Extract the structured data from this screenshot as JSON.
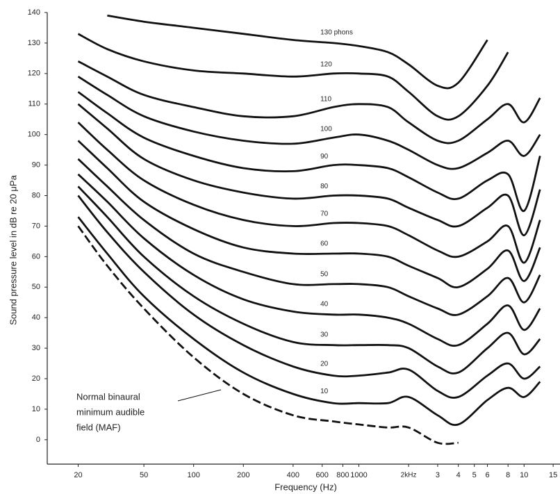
{
  "chart_data": {
    "type": "line",
    "xlabel": "Frequency (Hz)",
    "ylabel": "Sound pressure level in dB re 20 μPa",
    "xscale": "log",
    "xlim": [
      13,
      16500
    ],
    "ylim": [
      -8,
      140
    ],
    "xticks": [
      20,
      50,
      100,
      200,
      400,
      600,
      800,
      1000,
      {
        "value": 2000,
        "label": "2kHz"
      },
      {
        "value": 3000,
        "label": "3"
      },
      {
        "value": 4000,
        "label": "4"
      },
      {
        "value": 5000,
        "label": "5"
      },
      {
        "value": 6000,
        "label": "6"
      },
      {
        "value": 8000,
        "label": "8"
      },
      {
        "value": 10000,
        "label": "10"
      },
      {
        "value": 15000,
        "label": "15"
      }
    ],
    "yticks": [
      0,
      10,
      20,
      30,
      40,
      50,
      60,
      70,
      80,
      90,
      100,
      110,
      120,
      130,
      140
    ],
    "grid": false,
    "x": [
      20,
      30,
      50,
      100,
      200,
      400,
      700,
      1000,
      1500,
      2000,
      3000,
      4000,
      6000,
      8000,
      10000,
      12500
    ],
    "series": [
      {
        "name": "130 phons",
        "color": "#111111",
        "values": [
          null,
          139,
          137,
          135,
          133,
          131,
          130,
          129,
          127,
          123,
          116,
          117,
          131,
          null,
          null,
          null
        ]
      },
      {
        "name": "120",
        "color": "#111111",
        "values": [
          133,
          128,
          124,
          121,
          120,
          119,
          120,
          120,
          119,
          114,
          106,
          106,
          116,
          127,
          null,
          null
        ]
      },
      {
        "name": "110",
        "color": "#111111",
        "values": [
          124,
          119,
          113,
          109,
          106,
          106,
          109,
          110,
          109,
          104,
          98,
          98,
          105,
          110,
          104,
          112
        ]
      },
      {
        "name": "100",
        "color": "#111111",
        "values": [
          119,
          113,
          106,
          101,
          98,
          97,
          99,
          100,
          98,
          95,
          90,
          89,
          94,
          98,
          93,
          100
        ]
      },
      {
        "name": "90",
        "color": "#111111",
        "values": [
          114,
          107,
          99,
          93,
          89,
          88,
          90,
          90,
          89,
          86,
          81,
          79,
          85,
          87,
          75,
          93
        ]
      },
      {
        "name": "80",
        "color": "#111111",
        "values": [
          110,
          102,
          92,
          85,
          81,
          79,
          80,
          80,
          79,
          76,
          72,
          70,
          76,
          80,
          67,
          82
        ]
      },
      {
        "name": "70",
        "color": "#111111",
        "values": [
          104,
          95,
          85,
          77,
          72,
          70,
          71,
          71,
          70,
          67,
          62,
          60,
          65,
          70,
          58,
          72
        ]
      },
      {
        "name": "60",
        "color": "#111111",
        "values": [
          98,
          89,
          78,
          69,
          63,
          61,
          61,
          61,
          60,
          57,
          53,
          50,
          56,
          62,
          52,
          63
        ]
      },
      {
        "name": "50",
        "color": "#111111",
        "values": [
          92,
          83,
          72,
          61,
          55,
          51,
          51,
          51,
          50,
          47,
          43,
          41,
          47,
          53,
          45,
          54
        ]
      },
      {
        "name": "40",
        "color": "#111111",
        "values": [
          87,
          78,
          66,
          54,
          46,
          42,
          41,
          41,
          40,
          38,
          33,
          31,
          38,
          44,
          36,
          43
        ]
      },
      {
        "name": "30",
        "color": "#111111",
        "values": [
          83,
          73,
          60,
          47,
          38,
          32,
          31,
          31,
          31,
          30,
          24,
          22,
          30,
          35,
          28,
          33
        ]
      },
      {
        "name": "20",
        "color": "#111111",
        "values": [
          80,
          68,
          55,
          41,
          31,
          24,
          21,
          21,
          22,
          23,
          16,
          14,
          21,
          25,
          20,
          24
        ]
      },
      {
        "name": "10",
        "color": "#111111",
        "values": [
          73,
          61,
          47,
          33,
          22,
          15,
          12,
          12,
          12,
          14,
          8,
          5,
          13,
          17,
          14,
          19
        ]
      },
      {
        "color": "#111111",
        "dashed": true,
        "values": [
          70,
          57,
          43,
          27,
          15,
          8,
          6,
          5,
          4,
          4,
          -1,
          -1,
          null,
          null,
          null,
          null
        ]
      }
    ],
    "annotation": {
      "lines": [
        "Normal binaural",
        "minimum audible",
        "field (MAF)"
      ]
    }
  }
}
